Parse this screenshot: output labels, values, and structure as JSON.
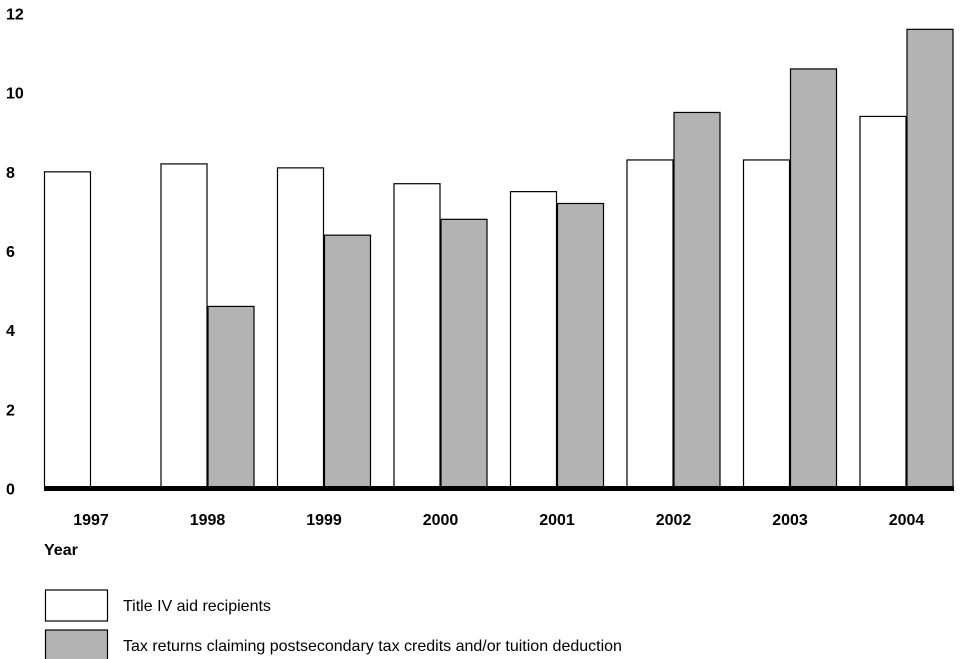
{
  "chart_data": {
    "type": "bar",
    "title": "",
    "xlabel": "Year",
    "ylabel": "",
    "ylim": [
      0,
      12
    ],
    "yticks": [
      "0",
      "2",
      "4",
      "6",
      "8",
      "10",
      "12"
    ],
    "grid": false,
    "legend_position": "bottom-left",
    "categories": [
      "1997",
      "1998",
      "1999",
      "2000",
      "2001",
      "2002",
      "2003",
      "2004"
    ],
    "series": [
      {
        "name": "Title IV aid recipients",
        "color": "#ffffff",
        "values": [
          8.0,
          8.2,
          8.1,
          7.7,
          7.5,
          8.3,
          8.3,
          9.4
        ]
      },
      {
        "name": "Tax returns claiming postsecondary tax credits and/or tuition deduction",
        "color": "#b3b3b3",
        "values": [
          null,
          4.6,
          6.4,
          6.8,
          7.2,
          9.5,
          10.6,
          11.6
        ]
      }
    ]
  }
}
